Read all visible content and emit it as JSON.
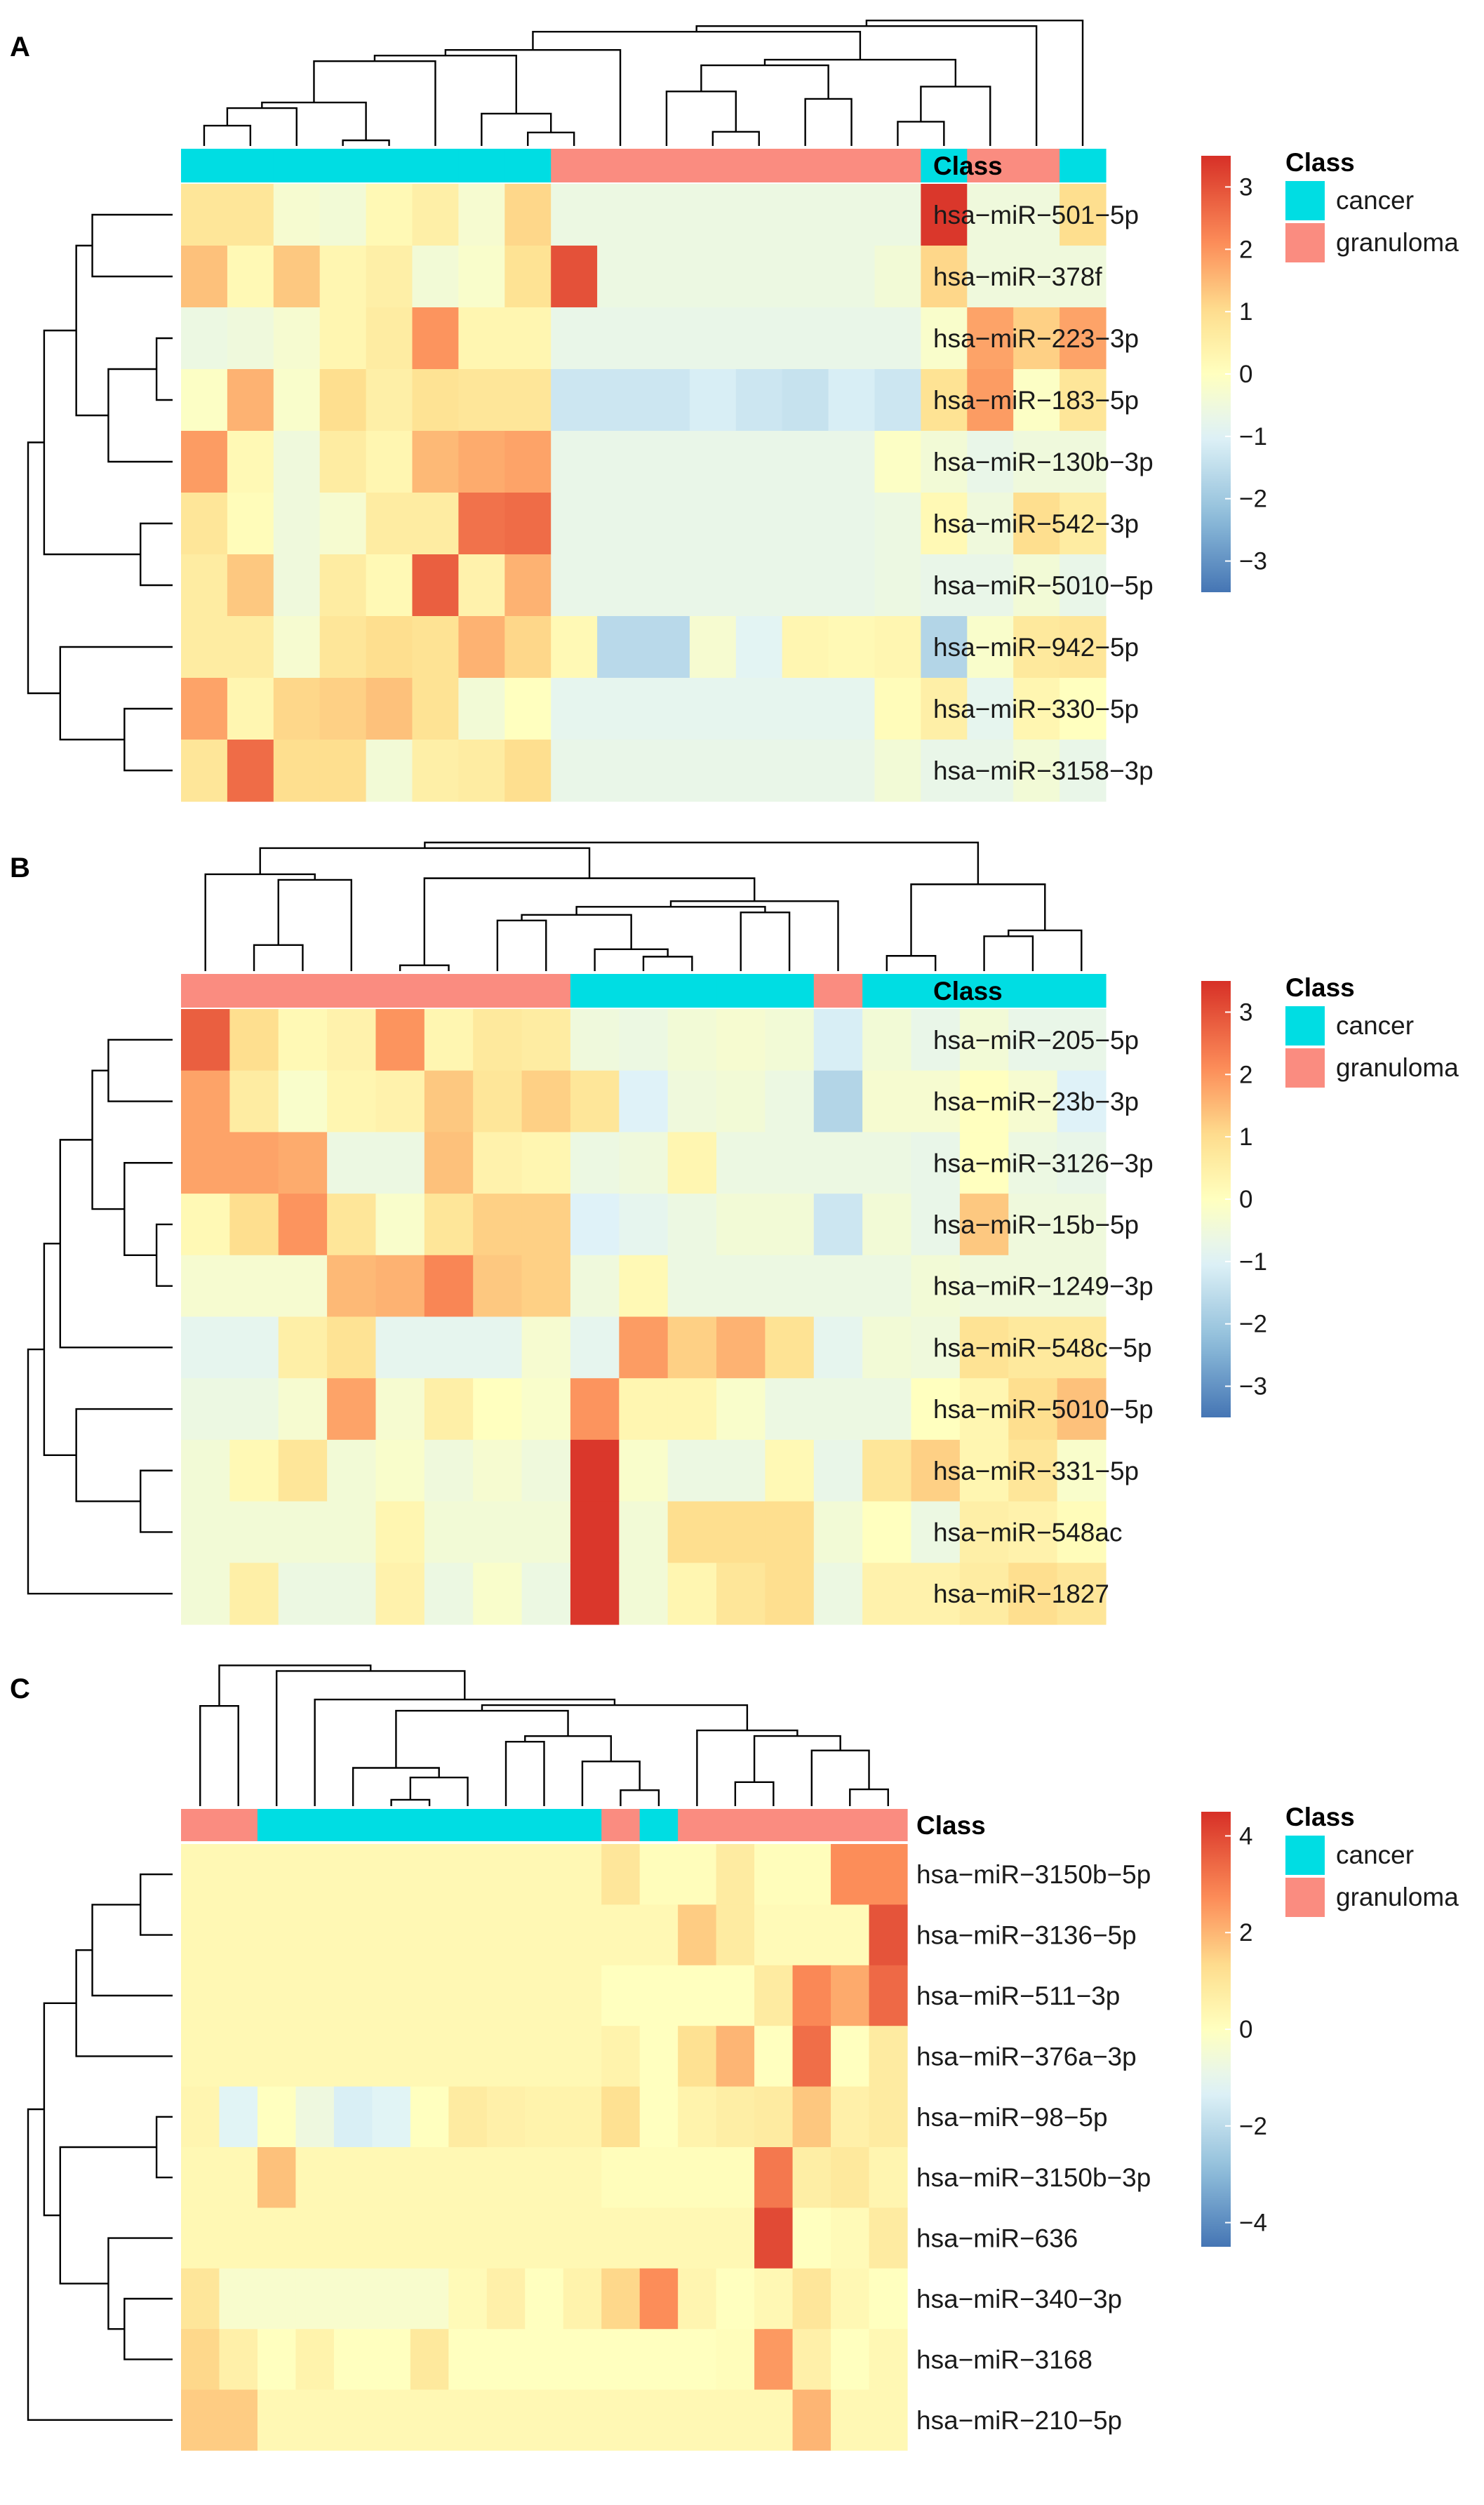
{
  "chart_data": [
    {
      "type": "heatmap",
      "panel_label": "A",
      "class_title": "Class",
      "legend_title": "Class",
      "legend_entries": [
        {
          "label": "cancer",
          "color": "#00DDE3"
        },
        {
          "label": "granuloma",
          "color": "#FA8C80"
        }
      ],
      "scale": {
        "min": -3.5,
        "max": 3.5,
        "ticks": [
          "3",
          "2",
          "1",
          "0",
          "−1",
          "−2",
          "−3"
        ],
        "tick_values": [
          3,
          2,
          1,
          0,
          -1,
          -2,
          -3
        ]
      },
      "column_classes": [
        "c",
        "c",
        "c",
        "c",
        "c",
        "c",
        "c",
        "c",
        "g",
        "g",
        "g",
        "g",
        "g",
        "g",
        "g",
        "g",
        "c",
        "g",
        "g",
        "c"
      ],
      "rows": [
        "hsa−miR−501−5p",
        "hsa−miR−378f",
        "hsa−miR−223−3p",
        "hsa−miR−183−5p",
        "hsa−miR−130b−3p",
        "hsa−miR−542−3p",
        "hsa−miR−5010−5p",
        "hsa−miR−942−5p",
        "hsa−miR−330−5p",
        "hsa−miR−3158−3p"
      ],
      "values": [
        [
          0.8,
          0.8,
          -0.3,
          -0.4,
          0.2,
          0.5,
          -0.3,
          1.1,
          -0.6,
          -0.6,
          -0.6,
          -0.6,
          -0.6,
          -0.6,
          -0.6,
          -0.6,
          3.4,
          -0.5,
          -0.5,
          1.0
        ],
        [
          1.4,
          0.2,
          1.3,
          0.3,
          0.5,
          -0.4,
          -0.2,
          0.9,
          3.0,
          -0.6,
          -0.6,
          -0.6,
          -0.6,
          -0.6,
          -0.6,
          -0.4,
          1.1,
          -0.5,
          -0.5,
          -0.5
        ],
        [
          -0.6,
          -0.5,
          -0.3,
          0.3,
          0.6,
          2.0,
          0.3,
          0.3,
          -0.7,
          -0.7,
          -0.7,
          -0.7,
          -0.7,
          -0.7,
          -0.7,
          -0.7,
          -0.2,
          1.8,
          1.2,
          1.8
        ],
        [
          -0.1,
          1.6,
          -0.2,
          1.0,
          0.5,
          0.9,
          0.8,
          0.8,
          -1.3,
          -1.3,
          -1.3,
          -1.1,
          -1.3,
          -1.4,
          -1.1,
          -1.3,
          0.9,
          1.9,
          -0.1,
          0.8
        ],
        [
          1.9,
          0.2,
          -0.5,
          0.6,
          0.3,
          1.5,
          1.7,
          1.8,
          -0.7,
          -0.7,
          -0.7,
          -0.7,
          -0.7,
          -0.7,
          -0.7,
          -0.1,
          -0.4,
          -0.7,
          -0.5,
          -0.5
        ],
        [
          0.8,
          0.1,
          -0.5,
          -0.3,
          0.6,
          0.6,
          2.5,
          2.6,
          -0.7,
          -0.7,
          -0.7,
          -0.7,
          -0.7,
          -0.7,
          -0.7,
          -0.6,
          0.2,
          -0.5,
          1.0,
          0.6
        ],
        [
          0.6,
          1.3,
          -0.5,
          0.6,
          0.2,
          2.8,
          0.4,
          1.6,
          -0.7,
          -0.7,
          -0.7,
          -0.7,
          -0.7,
          -0.7,
          -0.7,
          -0.6,
          -0.7,
          -0.7,
          -0.4,
          -0.7
        ],
        [
          0.6,
          0.6,
          -0.3,
          0.8,
          1.0,
          0.9,
          1.6,
          1.1,
          0.2,
          -1.6,
          -1.6,
          -0.3,
          -0.9,
          0.3,
          0.2,
          0.3,
          -1.7,
          -0.2,
          0.7,
          0.8
        ],
        [
          1.8,
          0.3,
          1.1,
          1.2,
          1.4,
          0.9,
          -0.4,
          0.0,
          -0.8,
          -0.8,
          -0.8,
          -0.8,
          -0.8,
          -0.8,
          -0.8,
          0.1,
          0.5,
          -0.8,
          0.3,
          0.0
        ],
        [
          0.8,
          2.6,
          1.0,
          1.0,
          -0.4,
          0.5,
          0.6,
          1.0,
          -0.7,
          -0.7,
          -0.7,
          -0.7,
          -0.7,
          -0.7,
          -0.7,
          -0.4,
          -0.7,
          -0.7,
          -0.4,
          -0.7
        ]
      ]
    },
    {
      "type": "heatmap",
      "panel_label": "B",
      "class_title": "Class",
      "legend_title": "Class",
      "legend_entries": [
        {
          "label": "cancer",
          "color": "#00DDE3"
        },
        {
          "label": "granuloma",
          "color": "#FA8C80"
        }
      ],
      "scale": {
        "min": -3.5,
        "max": 3.5,
        "ticks": [
          "3",
          "2",
          "1",
          "0",
          "−1",
          "−2",
          "−3"
        ],
        "tick_values": [
          3,
          2,
          1,
          0,
          -1,
          -2,
          -3
        ]
      },
      "column_classes": [
        "g",
        "g",
        "g",
        "g",
        "g",
        "g",
        "g",
        "g",
        "c",
        "c",
        "c",
        "c",
        "c",
        "g",
        "c",
        "c",
        "c",
        "c",
        "c"
      ],
      "rows": [
        "hsa−miR−205−5p",
        "hsa−miR−23b−3p",
        "hsa−miR−3126−3p",
        "hsa−miR−15b−5p",
        "hsa−miR−1249−3p",
        "hsa−miR−548c−5p",
        "hsa−miR−5010−5p",
        "hsa−miR−331−5p",
        "hsa−miR−548ac",
        "hsa−miR−1827"
      ],
      "values": [
        [
          2.8,
          1.0,
          0.2,
          0.4,
          2.0,
          0.3,
          0.7,
          0.6,
          -0.5,
          -0.6,
          -0.4,
          -0.3,
          -0.4,
          -1.1,
          -0.4,
          -0.7,
          -0.4,
          -0.7,
          -0.7
        ],
        [
          1.8,
          0.6,
          -0.2,
          0.3,
          0.4,
          1.3,
          0.8,
          1.2,
          0.8,
          -1.0,
          -0.5,
          -0.4,
          -0.6,
          -1.7,
          -0.3,
          -0.3,
          0.0,
          -0.3,
          -1.0
        ],
        [
          1.8,
          1.8,
          1.7,
          -0.6,
          -0.6,
          1.4,
          0.4,
          0.3,
          -0.6,
          -0.5,
          0.3,
          -0.6,
          -0.6,
          -0.6,
          -0.6,
          -0.7,
          0.0,
          -0.6,
          -0.7
        ],
        [
          0.2,
          1.0,
          2.0,
          0.8,
          -0.2,
          0.8,
          1.2,
          1.2,
          -1.0,
          -0.8,
          -0.6,
          -0.4,
          -0.4,
          -1.3,
          -0.4,
          -0.7,
          1.3,
          -0.5,
          -0.5
        ],
        [
          -0.3,
          -0.3,
          -0.3,
          1.5,
          1.6,
          2.2,
          1.3,
          1.2,
          -0.5,
          0.2,
          -0.6,
          -0.6,
          -0.6,
          -0.6,
          -0.6,
          -0.4,
          -0.5,
          -0.5,
          -0.5
        ],
        [
          -0.8,
          -0.8,
          0.5,
          0.9,
          -0.8,
          -0.8,
          -0.8,
          -0.3,
          -0.8,
          1.9,
          1.2,
          1.6,
          0.9,
          -0.8,
          -0.4,
          -0.5,
          0.9,
          0.7,
          0.7
        ],
        [
          -0.6,
          -0.6,
          -0.3,
          1.8,
          -0.3,
          0.5,
          0.0,
          -0.2,
          2.0,
          0.3,
          0.3,
          -0.2,
          -0.6,
          -0.6,
          -0.6,
          0.0,
          0.3,
          1.0,
          1.4
        ],
        [
          -0.4,
          0.2,
          0.8,
          -0.4,
          -0.2,
          -0.5,
          -0.3,
          -0.5,
          3.4,
          -0.2,
          -0.6,
          -0.6,
          0.2,
          -0.7,
          0.8,
          1.2,
          0.3,
          0.8,
          -0.2
        ],
        [
          -0.4,
          -0.4,
          -0.4,
          -0.4,
          0.3,
          -0.4,
          -0.4,
          -0.4,
          3.4,
          -0.4,
          1.0,
          1.0,
          1.0,
          -0.4,
          0.0,
          -0.6,
          0.5,
          0.4,
          0.1
        ],
        [
          -0.4,
          0.5,
          -0.6,
          -0.6,
          0.4,
          -0.6,
          -0.2,
          -0.6,
          3.4,
          -0.4,
          0.3,
          0.8,
          1.0,
          -0.6,
          0.4,
          0.4,
          0.6,
          1.0,
          0.8
        ]
      ]
    },
    {
      "type": "heatmap",
      "panel_label": "C",
      "class_title": "Class",
      "legend_title": "Class",
      "legend_entries": [
        {
          "label": "cancer",
          "color": "#00DDE3"
        },
        {
          "label": "granuloma",
          "color": "#FA8C80"
        }
      ],
      "scale": {
        "min": -4.5,
        "max": 4.5,
        "ticks": [
          "4",
          "2",
          "0",
          "−2",
          "−4"
        ],
        "tick_values": [
          4,
          2,
          0,
          -2,
          -4
        ]
      },
      "column_classes": [
        "g",
        "g",
        "c",
        "c",
        "c",
        "c",
        "c",
        "c",
        "c",
        "c",
        "c",
        "g",
        "c",
        "g",
        "g",
        "g",
        "g",
        "g",
        "g"
      ],
      "rows": [
        "hsa−miR−3150b−5p",
        "hsa−miR−3136−5p",
        "hsa−miR−511−3p",
        "hsa−miR−376a−3p",
        "hsa−miR−98−5p",
        "hsa−miR−3150b−3p",
        "hsa−miR−636",
        "hsa−miR−340−3p",
        "hsa−miR−3168",
        "hsa−miR−210−5p"
      ],
      "values": [
        [
          0.3,
          0.3,
          0.3,
          0.3,
          0.3,
          0.3,
          0.3,
          0.3,
          0.3,
          0.3,
          0.3,
          1.0,
          0.1,
          0.1,
          0.8,
          0.1,
          0.1,
          2.7,
          2.7
        ],
        [
          0.3,
          0.3,
          0.3,
          0.3,
          0.3,
          0.3,
          0.3,
          0.3,
          0.3,
          0.3,
          0.3,
          0.3,
          0.3,
          1.6,
          0.8,
          0.2,
          0.2,
          0.2,
          3.8
        ],
        [
          0.3,
          0.3,
          0.3,
          0.3,
          0.3,
          0.3,
          0.3,
          0.3,
          0.3,
          0.3,
          0.3,
          0.0,
          0.0,
          0.0,
          0.0,
          0.8,
          2.8,
          2.2,
          3.4
        ],
        [
          0.3,
          0.3,
          0.3,
          0.3,
          0.3,
          0.3,
          0.3,
          0.3,
          0.3,
          0.3,
          0.3,
          0.5,
          0.0,
          1.2,
          2.0,
          0.0,
          3.3,
          0.0,
          0.8
        ],
        [
          0.4,
          -1.2,
          0.0,
          -0.7,
          -1.4,
          -1.2,
          0.0,
          0.8,
          0.6,
          0.5,
          0.5,
          1.2,
          0.0,
          0.5,
          0.7,
          0.8,
          1.7,
          0.6,
          0.8
        ],
        [
          0.3,
          0.3,
          1.8,
          0.3,
          0.3,
          0.3,
          0.3,
          0.3,
          0.3,
          0.3,
          0.3,
          0.1,
          0.1,
          0.1,
          0.1,
          3.1,
          0.7,
          0.9,
          0.4
        ],
        [
          0.3,
          0.3,
          0.3,
          0.3,
          0.3,
          0.3,
          0.3,
          0.3,
          0.3,
          0.3,
          0.3,
          0.3,
          0.3,
          0.3,
          0.3,
          4.0,
          0.0,
          0.2,
          0.8
        ],
        [
          1.0,
          -0.3,
          -0.3,
          -0.3,
          -0.3,
          -0.3,
          -0.3,
          0.2,
          0.6,
          0.0,
          0.5,
          1.4,
          2.7,
          0.4,
          0.0,
          0.3,
          1.0,
          0.3,
          0.0
        ],
        [
          1.4,
          0.6,
          0.0,
          0.5,
          0.0,
          0.0,
          0.9,
          0.0,
          0.0,
          0.0,
          0.0,
          0.0,
          0.0,
          0.0,
          0.1,
          2.5,
          0.6,
          0.0,
          0.3
        ],
        [
          1.6,
          1.6,
          0.3,
          0.3,
          0.3,
          0.3,
          0.3,
          0.3,
          0.3,
          0.3,
          0.3,
          0.3,
          0.3,
          0.3,
          0.3,
          0.3,
          2.0,
          0.3,
          0.3
        ]
      ]
    }
  ]
}
